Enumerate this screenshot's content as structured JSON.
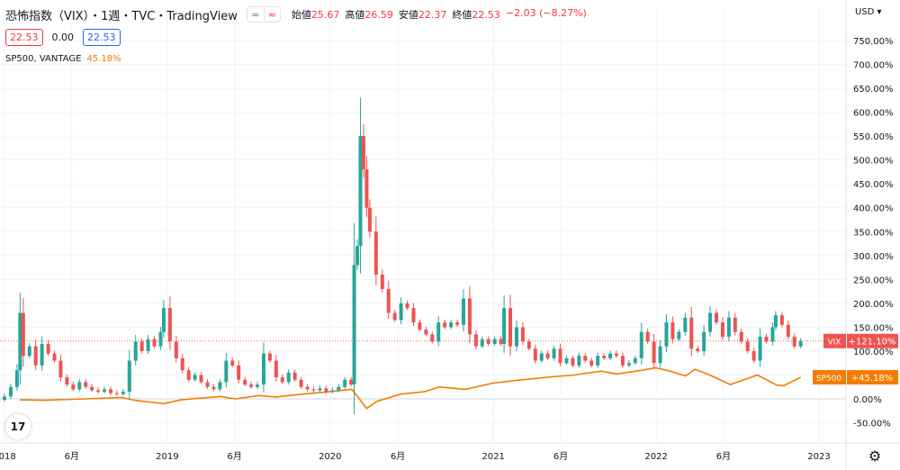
{
  "header": {
    "title": "恐怖指数（VIX）・1週・TVC・TradingView",
    "ohlc": [
      {
        "label": "始値",
        "value": "25.67"
      },
      {
        "label": "高値",
        "value": "26.59"
      },
      {
        "label": "安値",
        "value": "22.37"
      },
      {
        "label": "終値",
        "value": "22.53"
      },
      {
        "label": "",
        "value": "−2.03 (−8.27%)"
      }
    ],
    "pill_left": "=",
    "pill_right": "≈"
  },
  "values_row": {
    "sell": "22.53",
    "spread": "0.00",
    "buy": "22.53"
  },
  "legend2": {
    "name": "SP500, VANTAGE",
    "value": "45.18%"
  },
  "currency": "USD",
  "logo_text": "17",
  "colors": {
    "up": "#26a69a",
    "down": "#ef5350",
    "sp500": "#f57c00",
    "grid": "#f0f3fa",
    "axis_text": "#131722"
  },
  "chart_data": {
    "type": "line",
    "title": "",
    "ylabel": "",
    "xlabel": "",
    "y_axis_unit": "%",
    "ylim": [
      -100,
      800
    ],
    "y_ticks": [
      "-50.00%",
      "0.00%",
      "50.00%",
      "100.00%",
      "150.00%",
      "200.00%",
      "250.00%",
      "300.00%",
      "350.00%",
      "400.00%",
      "450.00%",
      "500.00%",
      "550.00%",
      "600.00%",
      "650.00%",
      "700.00%",
      "750.00%"
    ],
    "y_tick_values": [
      -50,
      0,
      50,
      100,
      150,
      200,
      250,
      300,
      350,
      400,
      450,
      500,
      550,
      600,
      650,
      700,
      750
    ],
    "x_ticks": [
      "2018",
      "6月",
      "2019",
      "6月",
      "2020",
      "6月",
      "2021",
      "6月",
      "2022",
      "6月",
      "2023"
    ],
    "x_tick_dates": [
      "2018-01-01",
      "2018-06-01",
      "2019-01-01",
      "2019-06-01",
      "2020-01-01",
      "2020-06-01",
      "2021-01-01",
      "2021-06-01",
      "2022-01-01",
      "2022-06-01",
      "2023-01-01"
    ],
    "x_range": [
      "2018-01-01",
      "2023-02-20"
    ],
    "grid": true,
    "series": [
      {
        "name": "VIX",
        "style": "candlestick",
        "last_label": "+121.10%",
        "last_value": 121.1,
        "points": [
          [
            "2017-12-04",
            -8
          ],
          [
            "2017-12-18",
            -2
          ],
          [
            "2018-01-01",
            5
          ],
          [
            "2018-01-15",
            25
          ],
          [
            "2018-01-29",
            60
          ],
          [
            "2018-02-05",
            180
          ],
          [
            "2018-02-12",
            90
          ],
          [
            "2018-02-26",
            110
          ],
          [
            "2018-03-12",
            70
          ],
          [
            "2018-03-26",
            115
          ],
          [
            "2018-04-09",
            95
          ],
          [
            "2018-04-23",
            80
          ],
          [
            "2018-05-07",
            45
          ],
          [
            "2018-05-21",
            30
          ],
          [
            "2018-06-04",
            20
          ],
          [
            "2018-06-18",
            35
          ],
          [
            "2018-07-02",
            25
          ],
          [
            "2018-07-16",
            18
          ],
          [
            "2018-07-30",
            15
          ],
          [
            "2018-08-13",
            20
          ],
          [
            "2018-08-27",
            12
          ],
          [
            "2018-09-10",
            10
          ],
          [
            "2018-09-24",
            15
          ],
          [
            "2018-10-08",
            80
          ],
          [
            "2018-10-22",
            120
          ],
          [
            "2018-11-05",
            100
          ],
          [
            "2018-11-19",
            125
          ],
          [
            "2018-12-03",
            110
          ],
          [
            "2018-12-17",
            140
          ],
          [
            "2018-12-24",
            190
          ],
          [
            "2019-01-07",
            120
          ],
          [
            "2019-01-21",
            85
          ],
          [
            "2019-02-04",
            60
          ],
          [
            "2019-02-18",
            40
          ],
          [
            "2019-03-04",
            50
          ],
          [
            "2019-03-18",
            35
          ],
          [
            "2019-04-01",
            25
          ],
          [
            "2019-04-15",
            20
          ],
          [
            "2019-04-29",
            35
          ],
          [
            "2019-05-13",
            80
          ],
          [
            "2019-05-27",
            70
          ],
          [
            "2019-06-10",
            40
          ],
          [
            "2019-06-24",
            30
          ],
          [
            "2019-07-08",
            25
          ],
          [
            "2019-07-22",
            30
          ],
          [
            "2019-08-05",
            95
          ],
          [
            "2019-08-19",
            80
          ],
          [
            "2019-09-02",
            45
          ],
          [
            "2019-09-16",
            35
          ],
          [
            "2019-09-30",
            55
          ],
          [
            "2019-10-14",
            40
          ],
          [
            "2019-10-28",
            25
          ],
          [
            "2019-11-11",
            20
          ],
          [
            "2019-11-25",
            18
          ],
          [
            "2019-12-09",
            22
          ],
          [
            "2019-12-23",
            15
          ],
          [
            "2020-01-06",
            18
          ],
          [
            "2020-01-20",
            25
          ],
          [
            "2020-02-03",
            40
          ],
          [
            "2020-02-17",
            30
          ],
          [
            "2020-02-24",
            280
          ],
          [
            "2020-03-02",
            320
          ],
          [
            "2020-03-09",
            550
          ],
          [
            "2020-03-16",
            480
          ],
          [
            "2020-03-23",
            400
          ],
          [
            "2020-03-30",
            350
          ],
          [
            "2020-04-13",
            260
          ],
          [
            "2020-04-27",
            230
          ],
          [
            "2020-05-11",
            180
          ],
          [
            "2020-05-25",
            165
          ],
          [
            "2020-06-08",
            200
          ],
          [
            "2020-06-22",
            190
          ],
          [
            "2020-07-06",
            160
          ],
          [
            "2020-07-20",
            145
          ],
          [
            "2020-08-03",
            135
          ],
          [
            "2020-08-17",
            120
          ],
          [
            "2020-08-31",
            160
          ],
          [
            "2020-09-14",
            150
          ],
          [
            "2020-09-28",
            160
          ],
          [
            "2020-10-12",
            155
          ],
          [
            "2020-10-26",
            210
          ],
          [
            "2020-11-09",
            135
          ],
          [
            "2020-11-23",
            110
          ],
          [
            "2020-12-07",
            125
          ],
          [
            "2020-12-21",
            115
          ],
          [
            "2021-01-04",
            125
          ],
          [
            "2021-01-18",
            115
          ],
          [
            "2021-01-25",
            190
          ],
          [
            "2021-02-08",
            110
          ],
          [
            "2021-02-22",
            150
          ],
          [
            "2021-03-08",
            120
          ],
          [
            "2021-03-22",
            105
          ],
          [
            "2021-04-05",
            80
          ],
          [
            "2021-04-19",
            95
          ],
          [
            "2021-05-03",
            85
          ],
          [
            "2021-05-17",
            105
          ],
          [
            "2021-05-31",
            75
          ],
          [
            "2021-06-14",
            85
          ],
          [
            "2021-06-28",
            70
          ],
          [
            "2021-07-12",
            90
          ],
          [
            "2021-07-26",
            80
          ],
          [
            "2021-08-09",
            70
          ],
          [
            "2021-08-23",
            90
          ],
          [
            "2021-09-06",
            85
          ],
          [
            "2021-09-20",
            95
          ],
          [
            "2021-10-04",
            90
          ],
          [
            "2021-10-18",
            70
          ],
          [
            "2021-11-01",
            75
          ],
          [
            "2021-11-15",
            85
          ],
          [
            "2021-11-29",
            140
          ],
          [
            "2021-12-13",
            120
          ],
          [
            "2021-12-27",
            75
          ],
          [
            "2022-01-10",
            110
          ],
          [
            "2022-01-24",
            160
          ],
          [
            "2022-02-07",
            125
          ],
          [
            "2022-02-21",
            140
          ],
          [
            "2022-03-07",
            170
          ],
          [
            "2022-03-21",
            105
          ],
          [
            "2022-04-04",
            100
          ],
          [
            "2022-04-18",
            140
          ],
          [
            "2022-05-02",
            180
          ],
          [
            "2022-05-16",
            160
          ],
          [
            "2022-05-30",
            130
          ],
          [
            "2022-06-13",
            170
          ],
          [
            "2022-06-27",
            140
          ],
          [
            "2022-07-11",
            120
          ],
          [
            "2022-07-25",
            100
          ],
          [
            "2022-08-08",
            80
          ],
          [
            "2022-08-22",
            130
          ],
          [
            "2022-09-05",
            120
          ],
          [
            "2022-09-19",
            150
          ],
          [
            "2022-09-26",
            175
          ],
          [
            "2022-10-10",
            155
          ],
          [
            "2022-10-24",
            130
          ],
          [
            "2022-11-07",
            110
          ],
          [
            "2022-11-21",
            121.1
          ]
        ]
      },
      {
        "name": "SP500",
        "style": "line",
        "last_label": "+45.18%",
        "last_value": 45.18,
        "points": [
          [
            "2018-02-05",
            -2
          ],
          [
            "2018-04-01",
            -3
          ],
          [
            "2018-06-01",
            -1
          ],
          [
            "2018-08-01",
            1
          ],
          [
            "2018-09-20",
            3
          ],
          [
            "2018-10-20",
            -3
          ],
          [
            "2018-12-24",
            -10
          ],
          [
            "2019-02-01",
            -2
          ],
          [
            "2019-04-30",
            5
          ],
          [
            "2019-06-03",
            0
          ],
          [
            "2019-07-26",
            7
          ],
          [
            "2019-09-01",
            4
          ],
          [
            "2019-11-01",
            10
          ],
          [
            "2019-12-31",
            15
          ],
          [
            "2020-02-19",
            20
          ],
          [
            "2020-03-23",
            -20
          ],
          [
            "2020-04-15",
            -5
          ],
          [
            "2020-06-08",
            10
          ],
          [
            "2020-07-31",
            15
          ],
          [
            "2020-09-02",
            25
          ],
          [
            "2020-10-30",
            20
          ],
          [
            "2020-12-31",
            33
          ],
          [
            "2021-02-15",
            38
          ],
          [
            "2021-04-30",
            45
          ],
          [
            "2021-06-30",
            50
          ],
          [
            "2021-08-31",
            58
          ],
          [
            "2021-10-04",
            52
          ],
          [
            "2021-11-30",
            60
          ],
          [
            "2021-12-31",
            65
          ],
          [
            "2022-02-01",
            58
          ],
          [
            "2022-03-08",
            48
          ],
          [
            "2022-03-29",
            62
          ],
          [
            "2022-05-01",
            50
          ],
          [
            "2022-06-16",
            30
          ],
          [
            "2022-08-16",
            50
          ],
          [
            "2022-09-30",
            28
          ],
          [
            "2022-10-15",
            28
          ],
          [
            "2022-11-21",
            45.18
          ]
        ]
      }
    ]
  }
}
